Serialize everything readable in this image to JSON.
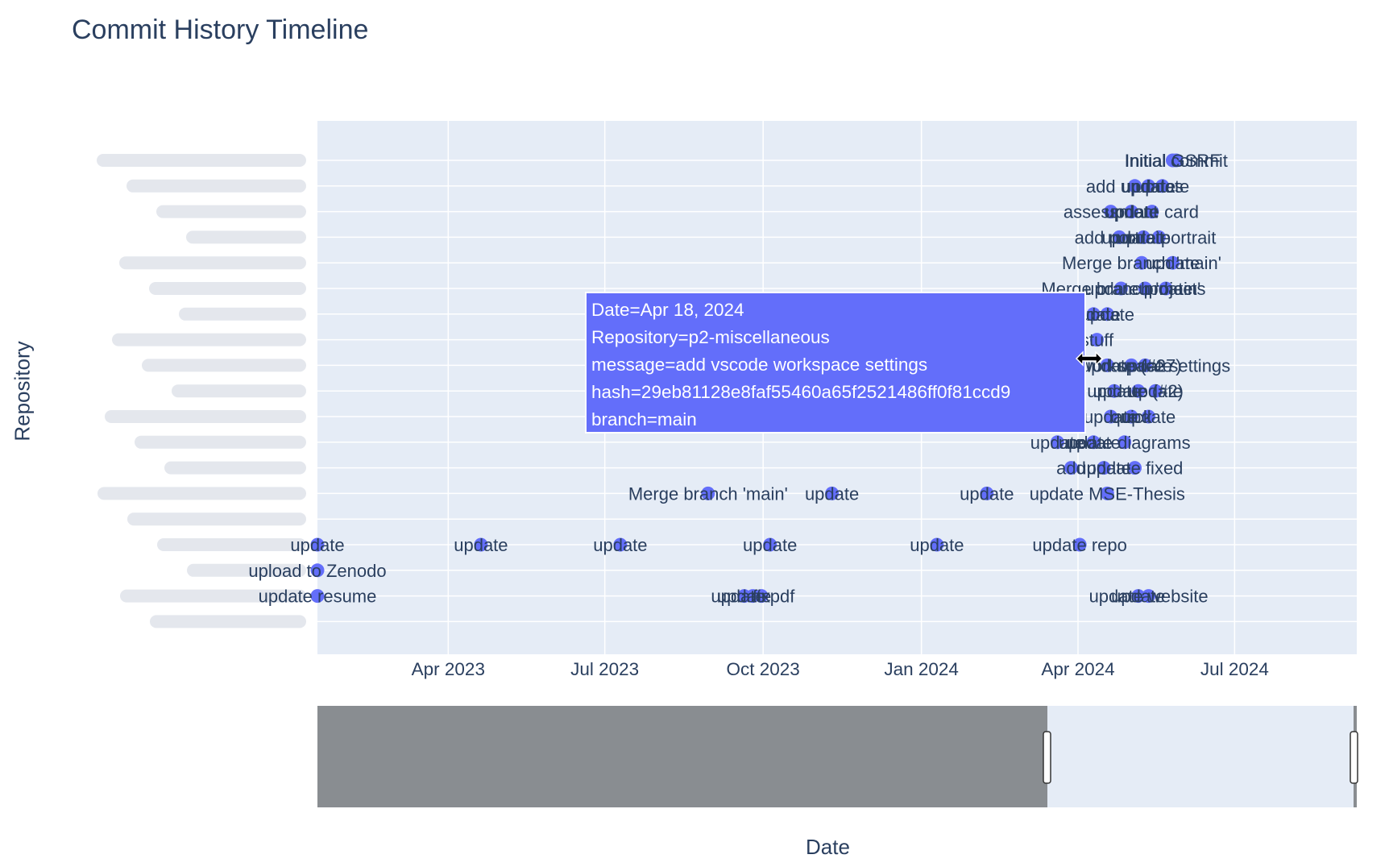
{
  "title": "Commit History Timeline",
  "colors": {
    "plot_bg": "#e5ecf6",
    "marker": "#636efa",
    "text": "#2a3f5f",
    "grid": "#ffffff",
    "slider_mask": "#898d91"
  },
  "chart_data": {
    "type": "scatter",
    "title": "Commit History Timeline",
    "xlabel": "Date",
    "ylabel": "Repository",
    "x_range": [
      "2023-01-15",
      "2024-09-10"
    ],
    "x_ticks": [
      "2023-04-01",
      "2023-07-01",
      "2023-10-01",
      "2024-01-01",
      "2024-04-01",
      "2024-07-01"
    ],
    "x_tick_labels": [
      "Apr 2023",
      "Jul 2023",
      "Oct 2023",
      "Jan 2024",
      "Apr 2024",
      "Jul 2024"
    ],
    "grid": true,
    "legend": "none",
    "rangeslider": {
      "visible": true,
      "selected_range": [
        "2024-03-24",
        "2024-09-10"
      ]
    },
    "points": [
      {
        "row": 0,
        "x": "2024-05-28",
        "label": "Initial commit"
      },
      {
        "row": 0,
        "x": "2024-05-26",
        "label": "Initial GSRF"
      },
      {
        "row": 1,
        "x": "2024-05-04",
        "label": "add updates"
      },
      {
        "row": 1,
        "x": "2024-05-12",
        "label": "update"
      },
      {
        "row": 1,
        "x": "2024-05-20",
        "label": "update"
      },
      {
        "row": 2,
        "x": "2024-04-20",
        "label": "assessment"
      },
      {
        "row": 2,
        "x": "2024-05-02",
        "label": "update"
      },
      {
        "row": 2,
        "x": "2024-05-14",
        "label": "update card"
      },
      {
        "row": 3,
        "x": "2024-04-25",
        "label": "add portrait"
      },
      {
        "row": 3,
        "x": "2024-05-09",
        "label": "update"
      },
      {
        "row": 3,
        "x": "2024-05-18",
        "label": "update portrait"
      },
      {
        "row": 4,
        "x": "2024-05-08",
        "label": "Merge branch 'main'"
      },
      {
        "row": 4,
        "x": "2024-05-26",
        "label": "update"
      },
      {
        "row": 5,
        "x": "2024-04-26",
        "label": "Merge branch 'main'"
      },
      {
        "row": 5,
        "x": "2024-05-10",
        "label": "update projects"
      },
      {
        "row": 5,
        "x": "2024-05-22",
        "label": "update"
      },
      {
        "row": 6,
        "x": "2024-04-10",
        "label": "update"
      },
      {
        "row": 6,
        "x": "2024-04-18",
        "label": "update"
      },
      {
        "row": 7,
        "x": "2024-04-12",
        "label": "stuff"
      },
      {
        "row": 8,
        "x": "2024-04-18",
        "label": "add vscode workspace settings"
      },
      {
        "row": 8,
        "x": "2024-05-02",
        "label": "update (#27)"
      },
      {
        "row": 8,
        "x": "2024-05-10",
        "label": "update"
      },
      {
        "row": 9,
        "x": "2024-04-22",
        "label": "update"
      },
      {
        "row": 9,
        "x": "2024-05-06",
        "label": "update (#2)"
      },
      {
        "row": 9,
        "x": "2024-05-16",
        "label": "update"
      },
      {
        "row": 10,
        "x": "2024-04-20",
        "label": "update"
      },
      {
        "row": 10,
        "x": "2024-05-02",
        "label": "quick"
      },
      {
        "row": 10,
        "x": "2024-05-12",
        "label": "update"
      },
      {
        "row": 11,
        "x": "2024-03-20",
        "label": "update"
      },
      {
        "row": 11,
        "x": "2024-04-10",
        "label": "update"
      },
      {
        "row": 11,
        "x": "2024-04-28",
        "label": "update diagrams"
      },
      {
        "row": 12,
        "x": "2024-03-28",
        "label": "add"
      },
      {
        "row": 12,
        "x": "2024-04-16",
        "label": "update"
      },
      {
        "row": 12,
        "x": "2024-05-04",
        "label": "update fixed"
      },
      {
        "row": 13,
        "x": "2023-08-30",
        "label": "Merge branch 'main'"
      },
      {
        "row": 13,
        "x": "2023-11-10",
        "label": "update"
      },
      {
        "row": 13,
        "x": "2024-02-08",
        "label": "update"
      },
      {
        "row": 13,
        "x": "2024-04-18",
        "label": "update MSE-Thesis"
      },
      {
        "row": 15,
        "x": "2023-01-15",
        "label": "update"
      },
      {
        "row": 15,
        "x": "2023-04-20",
        "label": "update"
      },
      {
        "row": 15,
        "x": "2023-07-10",
        "label": "update"
      },
      {
        "row": 15,
        "x": "2023-10-05",
        "label": "update"
      },
      {
        "row": 15,
        "x": "2024-01-10",
        "label": "update"
      },
      {
        "row": 15,
        "x": "2024-04-02",
        "label": "update repo"
      },
      {
        "row": 16,
        "x": "2023-01-15",
        "label": "upload to Zenodo"
      },
      {
        "row": 17,
        "x": "2023-01-15",
        "label": "update resume"
      },
      {
        "row": 17,
        "x": "2023-09-20",
        "label": "update"
      },
      {
        "row": 17,
        "x": "2023-09-25",
        "label": "update pdf"
      },
      {
        "row": 17,
        "x": "2023-09-30",
        "label": "fix"
      },
      {
        "row": 17,
        "x": "2024-05-06",
        "label": "update"
      },
      {
        "row": 17,
        "x": "2024-05-12",
        "label": "update website"
      }
    ]
  },
  "hover": {
    "lines": [
      "Date=Apr 18, 2024",
      "Repository=p2-miscellaneous",
      "message=add vscode workspace settings",
      "hash=29eb81128e8faf55460a65f2521486ff0f81ccd9",
      "branch=main"
    ],
    "target_row": 8,
    "target_x": "2024-04-18"
  },
  "cursor_icon": "resize-horizontal-icon"
}
